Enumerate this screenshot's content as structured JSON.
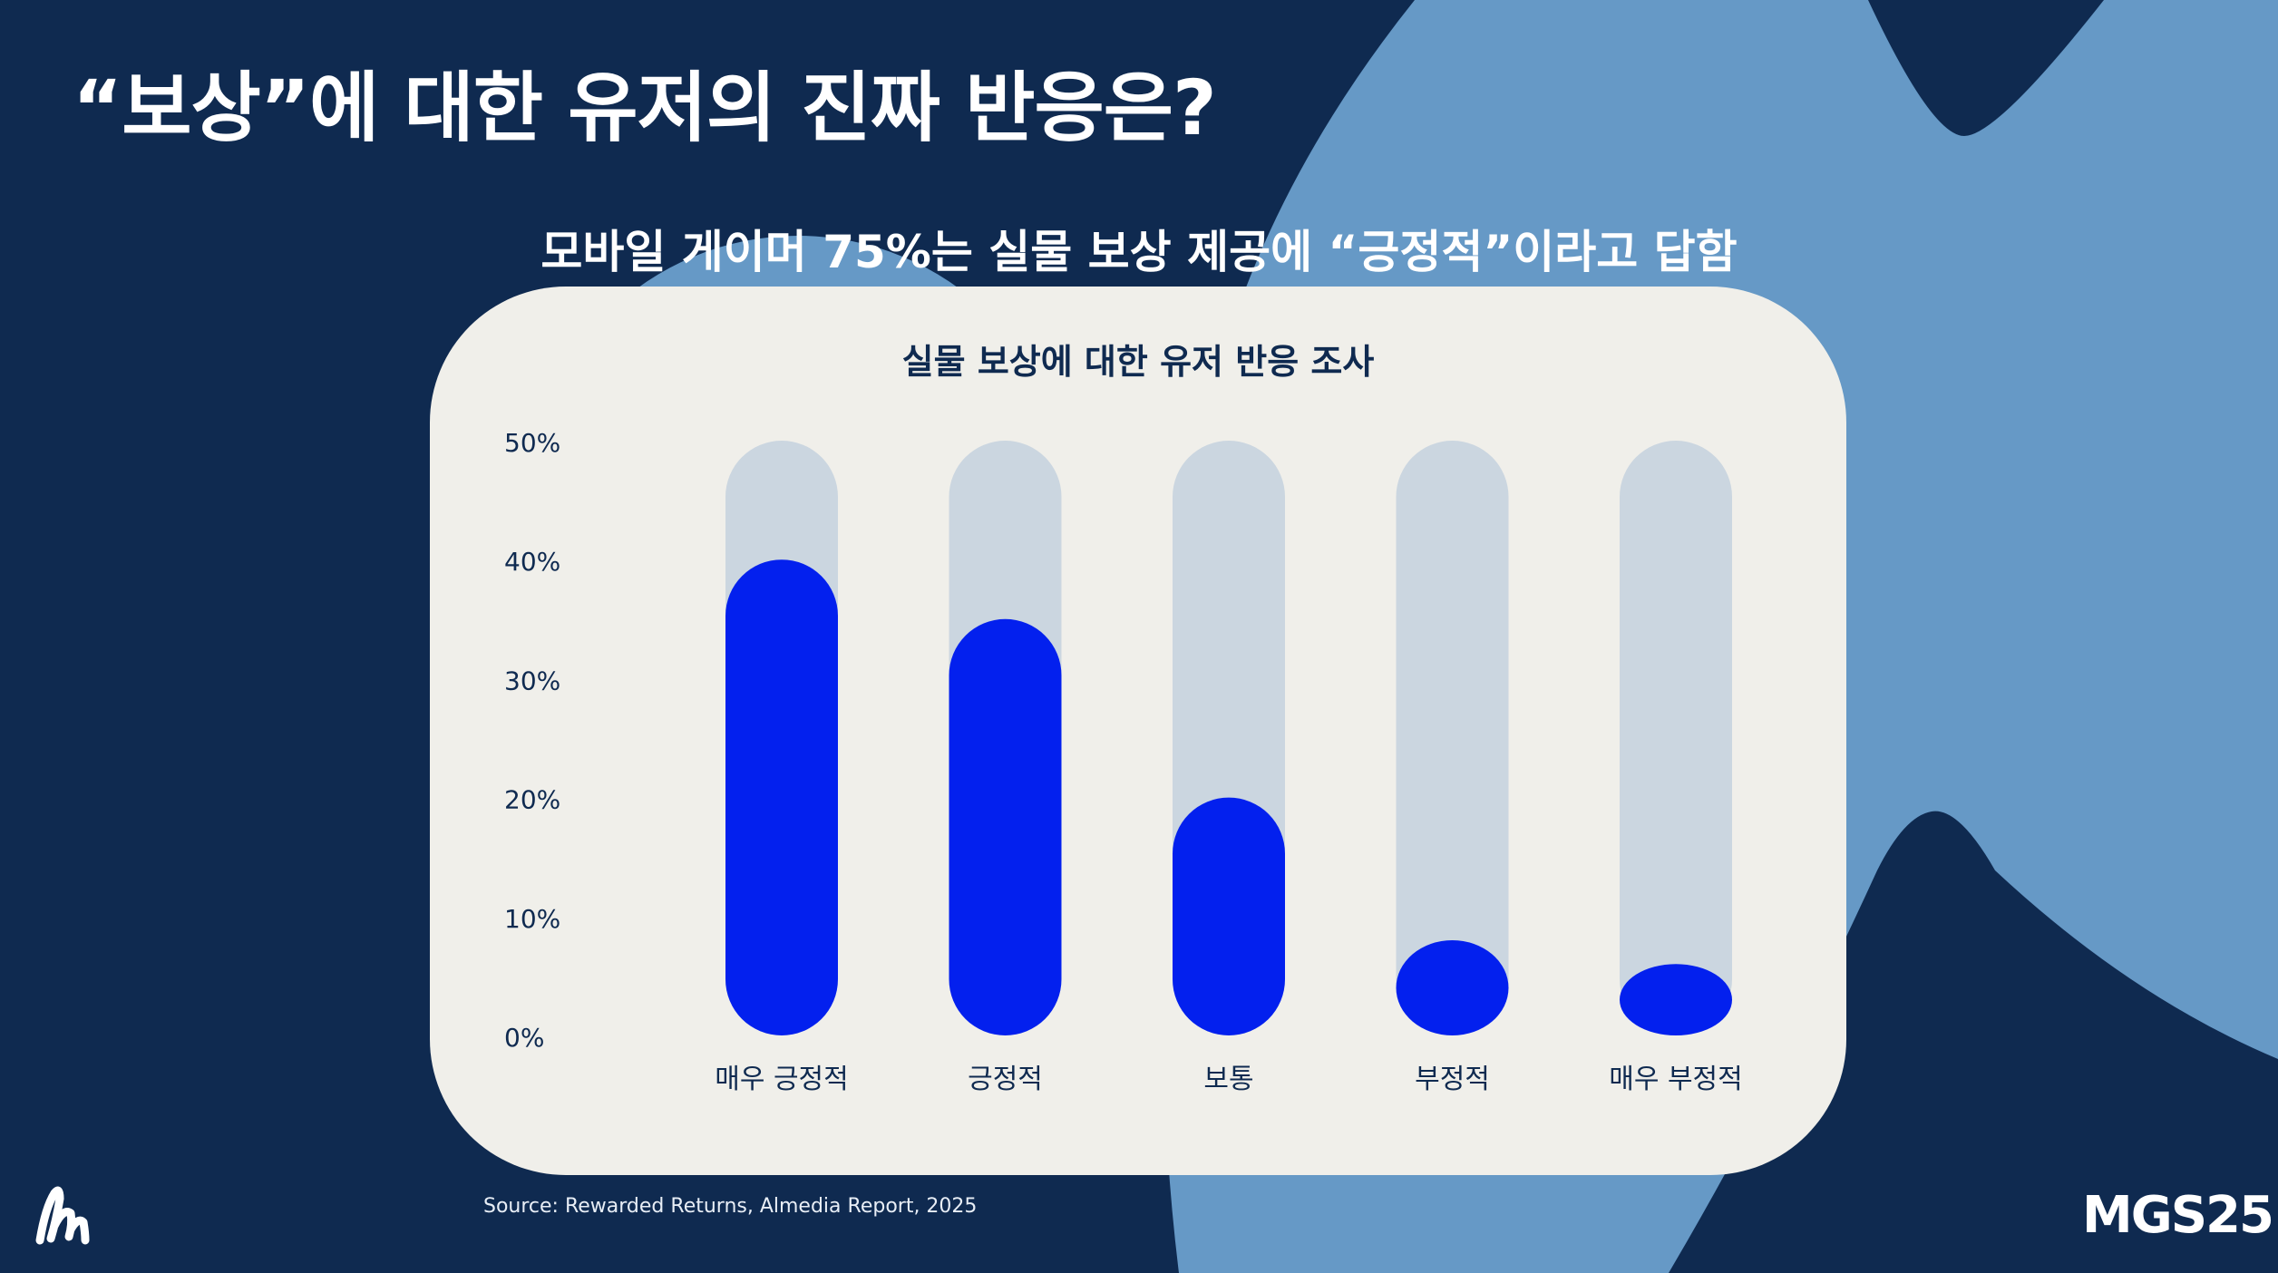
{
  "slide": {
    "title": "“보상”에 대한 유저의 진짜 반응은?",
    "subtitle": "모바일 게이머 75%는 실물 보상 제공에 “긍정적”이라고 답함",
    "source": "Source: Rewarded Returns, Almedia Report, 2025",
    "brand_mark": "MGS25",
    "logo_icon": "stylized-m-logo-icon"
  },
  "colors": {
    "background": "#0f2a50",
    "blob": "#6699c6",
    "card": "#f0efea",
    "track": "#cbd6e0",
    "bar": "#0320ee",
    "text_dark": "#0f2a50"
  },
  "chart_data": {
    "type": "bar",
    "title": "실물 보상에 대한 유저 반응 조사",
    "categories": [
      "매우 긍정적",
      "긍정적",
      "보통",
      "부정적",
      "매우 부정적"
    ],
    "values": [
      40,
      35,
      20,
      8,
      6
    ],
    "ylim": [
      0,
      50
    ],
    "y_ticks": [
      "0%",
      "10%",
      "20%",
      "30%",
      "40%",
      "50%"
    ],
    "y_tick_values": [
      0,
      10,
      20,
      30,
      40,
      50
    ],
    "grid": false,
    "legend": "none",
    "bar_style": "rounded bars on full-height background tracks"
  }
}
